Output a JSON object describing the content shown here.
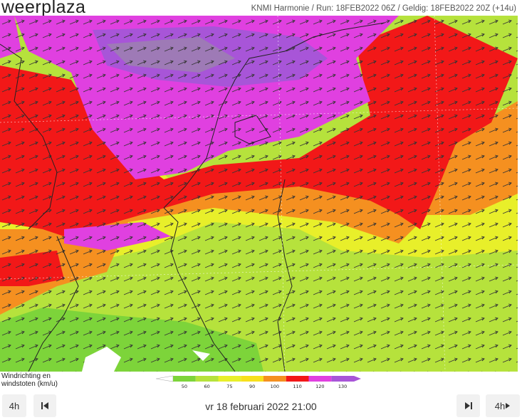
{
  "header": {
    "logo": "weerplaza",
    "run_info": "KNMI Harmonie / Run: 18FEB2022 06Z / Geldig: 18FEB2022 20Z (+14u)"
  },
  "legend": {
    "title": [
      "Windrichting en",
      "windstoten (km/u)"
    ],
    "ticks": [
      "50",
      "60",
      "75",
      "90",
      "100",
      "110",
      "120",
      "130"
    ],
    "colors": [
      "#7dd43a",
      "#b6e23c",
      "#e8ef2a",
      "#f7e01c",
      "#f59020",
      "#f21818",
      "#e040e0",
      "#a855d8"
    ]
  },
  "controls": {
    "step_back": "4h",
    "date": "vr 18 februari 2022 21:00",
    "step_forward": "4h"
  }
}
